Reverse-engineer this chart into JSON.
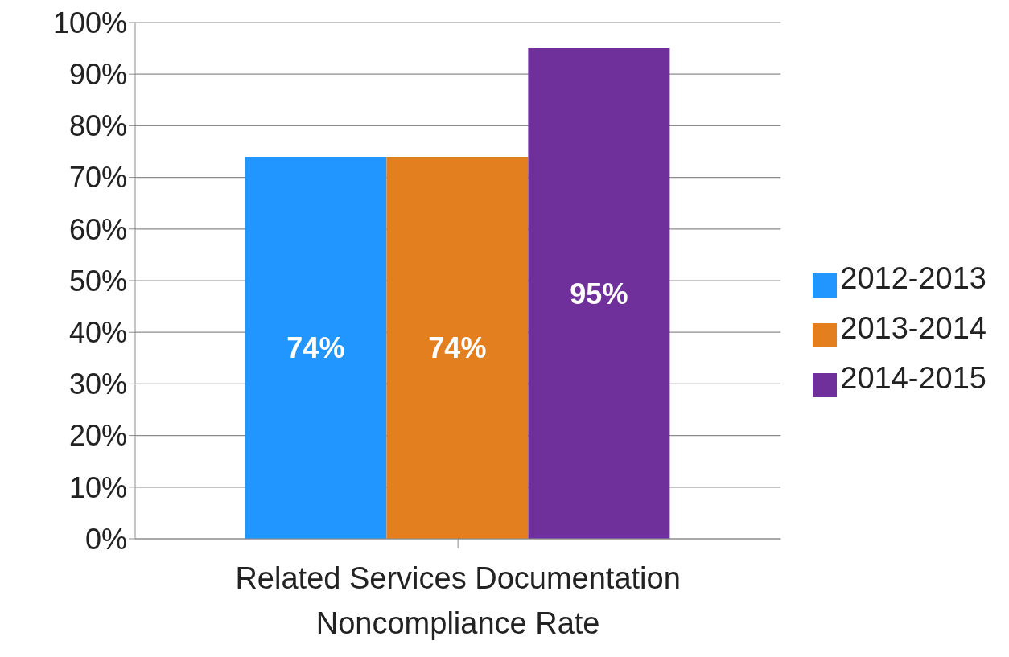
{
  "chart_data": {
    "type": "bar",
    "categories": [
      "Related Services Documentation Noncompliance Rate"
    ],
    "series": [
      {
        "name": "2012-2013",
        "color": "#2196ff",
        "values": [
          74
        ],
        "value_labels": [
          "74%"
        ]
      },
      {
        "name": "2013-2014",
        "color": "#e37f1f",
        "values": [
          74
        ],
        "value_labels": [
          "74%"
        ]
      },
      {
        "name": "2014-2015",
        "color": "#6f309c",
        "values": [
          95
        ],
        "value_labels": [
          "95%"
        ]
      }
    ],
    "ylim": [
      0,
      100
    ],
    "yticks": [
      {
        "value": 0,
        "label": "0%"
      },
      {
        "value": 10,
        "label": "10%"
      },
      {
        "value": 20,
        "label": "20%"
      },
      {
        "value": 30,
        "label": "30%"
      },
      {
        "value": 40,
        "label": "40%"
      },
      {
        "value": 50,
        "label": "50%"
      },
      {
        "value": 60,
        "label": "60%"
      },
      {
        "value": 70,
        "label": "70%"
      },
      {
        "value": 80,
        "label": "80%"
      },
      {
        "value": 90,
        "label": "90%"
      },
      {
        "value": 100,
        "label": "100%"
      }
    ],
    "grid": "y",
    "legend": "right"
  }
}
